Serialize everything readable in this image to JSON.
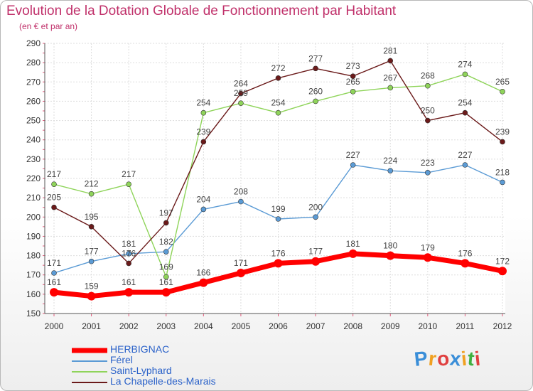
{
  "title": "Evolution de la Dotation Globale de Fonctionnement par Habitant",
  "subtitle": "(en € et par an)",
  "logo": {
    "letters": [
      "P",
      "r",
      "o",
      "x",
      "i",
      "t",
      "i"
    ],
    "colors": [
      "#3a8ed8",
      "#f0a020",
      "#e04040",
      "#3a8ed8",
      "#f0a020",
      "#40b040",
      "#e04040"
    ]
  },
  "chart_data": {
    "type": "line",
    "x": [
      "2000",
      "2001",
      "2002",
      "2003",
      "2004",
      "2005",
      "2006",
      "2007",
      "2008",
      "2009",
      "2010",
      "2011",
      "2012"
    ],
    "ylim": [
      150,
      290
    ],
    "yticks": [
      150,
      160,
      170,
      180,
      190,
      200,
      210,
      220,
      230,
      240,
      250,
      260,
      270,
      280,
      290
    ],
    "grid": true,
    "legend_position": "bottom-left",
    "series": [
      {
        "name": "HERBIGNAC",
        "color": "#ff0000",
        "values": [
          161,
          159,
          161,
          161,
          166,
          171,
          176,
          177,
          181,
          180,
          179,
          176,
          172
        ]
      },
      {
        "name": "Férel",
        "color": "#5b9bd5",
        "values": [
          171,
          177,
          181,
          182,
          204,
          208,
          199,
          200,
          227,
          224,
          223,
          227,
          218
        ]
      },
      {
        "name": "Saint-Lyphard",
        "color": "#8fd45a",
        "values": [
          217,
          212,
          217,
          169,
          254,
          259,
          254,
          260,
          265,
          267,
          268,
          274,
          265
        ]
      },
      {
        "name": "La Chapelle-des-Marais",
        "color": "#6b1a1a",
        "values": [
          205,
          195,
          176,
          197,
          239,
          264,
          272,
          277,
          273,
          281,
          250,
          254,
          239
        ]
      }
    ]
  }
}
